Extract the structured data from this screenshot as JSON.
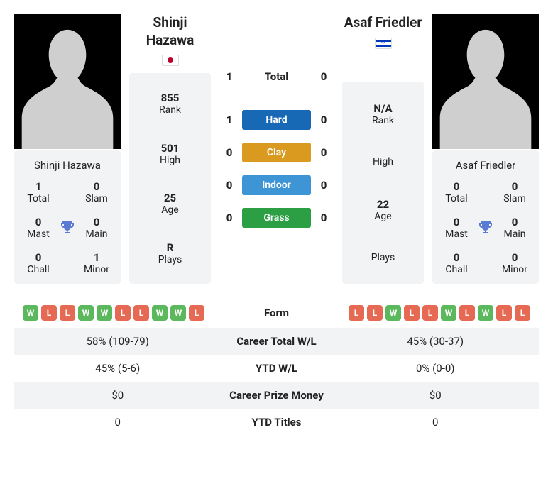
{
  "colors": {
    "hard": "#1769b5",
    "clay": "#d99a1f",
    "indoor": "#3e95d6",
    "grass": "#2c9f44",
    "win": "#5cb85c",
    "loss": "#e66a53",
    "card_bg": "#f2f3f5",
    "trophy": "#5a7bd4"
  },
  "player1": {
    "name": "Shinji Hazawa",
    "first": "Shinji",
    "last": "Hazawa",
    "country": "jp",
    "titles": {
      "total": {
        "v": "1",
        "l": "Total"
      },
      "slam": {
        "v": "0",
        "l": "Slam"
      },
      "mast": {
        "v": "0",
        "l": "Mast"
      },
      "main": {
        "v": "0",
        "l": "Main"
      },
      "chall": {
        "v": "0",
        "l": "Chall"
      },
      "minor": {
        "v": "1",
        "l": "Minor"
      }
    },
    "stats": {
      "rank": {
        "v": "855",
        "l": "Rank"
      },
      "high": {
        "v": "501",
        "l": "High"
      },
      "age": {
        "v": "25",
        "l": "Age"
      },
      "plays": {
        "v": "R",
        "l": "Plays"
      }
    },
    "form": [
      "W",
      "L",
      "L",
      "W",
      "W",
      "L",
      "L",
      "W",
      "W",
      "L"
    ],
    "career_wl": "58% (109-79)",
    "ytd_wl": "45% (5-6)",
    "prize": "$0",
    "ytd_titles": "0"
  },
  "player2": {
    "name": "Asaf Friedler",
    "first": "Asaf",
    "last": "Friedler",
    "country": "il",
    "titles": {
      "total": {
        "v": "0",
        "l": "Total"
      },
      "slam": {
        "v": "0",
        "l": "Slam"
      },
      "mast": {
        "v": "0",
        "l": "Mast"
      },
      "main": {
        "v": "0",
        "l": "Main"
      },
      "chall": {
        "v": "0",
        "l": "Chall"
      },
      "minor": {
        "v": "0",
        "l": "Minor"
      }
    },
    "stats": {
      "rank": {
        "v": "N/A",
        "l": "Rank"
      },
      "high": {
        "v": "",
        "l": "High"
      },
      "age": {
        "v": "22",
        "l": "Age"
      },
      "plays": {
        "v": "",
        "l": "Plays"
      }
    },
    "form": [
      "L",
      "L",
      "W",
      "L",
      "L",
      "W",
      "L",
      "W",
      "L",
      "L"
    ],
    "career_wl": "45% (30-37)",
    "ytd_wl": "0% (0-0)",
    "prize": "$0",
    "ytd_titles": "0"
  },
  "h2h": {
    "total": {
      "p1": "1",
      "label": "Total",
      "p2": "0"
    },
    "surfaces": [
      {
        "p1": "1",
        "name": "Hard",
        "color_key": "hard",
        "p2": "0"
      },
      {
        "p1": "0",
        "name": "Clay",
        "color_key": "clay",
        "p2": "0"
      },
      {
        "p1": "0",
        "name": "Indoor",
        "color_key": "indoor",
        "p2": "0"
      },
      {
        "p1": "0",
        "name": "Grass",
        "color_key": "grass",
        "p2": "0"
      }
    ]
  },
  "rows": [
    {
      "key": "form",
      "label": "Form"
    },
    {
      "key": "career_wl",
      "label": "Career Total W/L"
    },
    {
      "key": "ytd_wl",
      "label": "YTD W/L"
    },
    {
      "key": "prize",
      "label": "Career Prize Money"
    },
    {
      "key": "ytd_titles",
      "label": "YTD Titles"
    }
  ]
}
